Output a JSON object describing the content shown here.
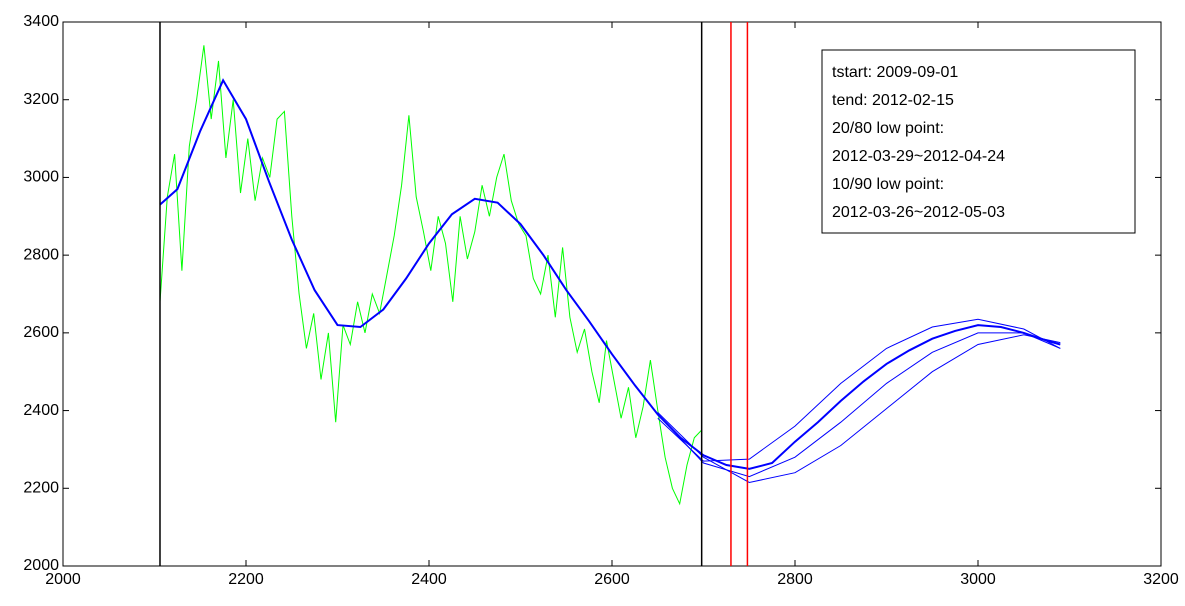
{
  "chart_data": {
    "type": "line",
    "xlim": [
      2000,
      3200
    ],
    "ylim": [
      2000,
      3400
    ],
    "xticks": [
      2000,
      2200,
      2400,
      2600,
      2800,
      3000,
      3200
    ],
    "yticks": [
      2000,
      2200,
      2400,
      2600,
      2800,
      3000,
      3200,
      3400
    ],
    "annotation": [
      "tstart: 2009-09-01",
      "tend: 2012-02-15",
      "20/80 low point:",
      "2012-03-29~2012-04-24",
      "10/90 low point:",
      "2012-03-26~2012-05-03"
    ],
    "vlines": [
      {
        "x": 2106,
        "color": "#000000"
      },
      {
        "x": 2698,
        "color": "#000000"
      },
      {
        "x": 2730,
        "color": "#ff0000"
      },
      {
        "x": 2748,
        "color": "#ff0000"
      }
    ],
    "series": [
      {
        "color": "#00ff00",
        "x": [
          2106,
          2114,
          2122,
          2130,
          2138,
          2146,
          2154,
          2162,
          2170,
          2178,
          2186,
          2194,
          2202,
          2210,
          2218,
          2226,
          2234,
          2242,
          2250,
          2258,
          2266,
          2274,
          2282,
          2290,
          2298,
          2306,
          2314,
          2322,
          2330,
          2338,
          2346,
          2354,
          2362,
          2370,
          2378,
          2386,
          2394,
          2402,
          2410,
          2418,
          2426,
          2434,
          2442,
          2450,
          2458,
          2466,
          2474,
          2482,
          2490,
          2498,
          2506,
          2514,
          2522,
          2530,
          2538,
          2546,
          2554,
          2562,
          2570,
          2578,
          2586,
          2594,
          2602,
          2610,
          2618,
          2626,
          2634,
          2642,
          2650,
          2658,
          2666,
          2674,
          2682,
          2690,
          2698
        ],
        "values": [
          2680,
          2950,
          3060,
          2760,
          3080,
          3200,
          3340,
          3150,
          3300,
          3050,
          3200,
          2960,
          3100,
          2940,
          3050,
          3000,
          3150,
          3170,
          2900,
          2700,
          2560,
          2650,
          2480,
          2600,
          2370,
          2620,
          2570,
          2680,
          2600,
          2700,
          2650,
          2750,
          2850,
          2980,
          3160,
          2950,
          2860,
          2760,
          2900,
          2830,
          2680,
          2900,
          2790,
          2860,
          2980,
          2900,
          3000,
          3060,
          2940,
          2880,
          2850,
          2740,
          2700,
          2800,
          2640,
          2820,
          2640,
          2550,
          2610,
          2500,
          2420,
          2580,
          2480,
          2380,
          2460,
          2330,
          2410,
          2530,
          2400,
          2280,
          2200,
          2160,
          2260,
          2330,
          2350
        ]
      },
      {
        "color": "#0000ff",
        "x": [
          2106,
          2125,
          2150,
          2175,
          2200,
          2225,
          2250,
          2275,
          2300,
          2325,
          2350,
          2375,
          2400,
          2425,
          2450,
          2475,
          2500,
          2525,
          2550,
          2575,
          2600,
          2625,
          2650,
          2675,
          2700,
          2725,
          2750,
          2775,
          2800,
          2825,
          2850,
          2875,
          2900,
          2925,
          2950,
          2975,
          3000,
          3025,
          3050,
          3075,
          3090
        ],
        "values": [
          2930,
          2970,
          3120,
          3250,
          3150,
          2990,
          2840,
          2710,
          2620,
          2615,
          2660,
          2740,
          2830,
          2905,
          2945,
          2935,
          2880,
          2800,
          2710,
          2630,
          2545,
          2465,
          2390,
          2330,
          2285,
          2260,
          2250,
          2265,
          2320,
          2370,
          2425,
          2475,
          2520,
          2555,
          2585,
          2605,
          2620,
          2615,
          2600,
          2580,
          2570
        ]
      },
      {
        "color": "#0000ff",
        "x": [
          2650,
          2700,
          2750,
          2800,
          2850,
          2900,
          2950,
          3000,
          3050,
          3090
        ],
        "values": [
          2380,
          2270,
          2275,
          2360,
          2470,
          2560,
          2615,
          2635,
          2610,
          2560
        ]
      },
      {
        "color": "#0000ff",
        "x": [
          2650,
          2700,
          2750,
          2800,
          2850,
          2900,
          2950,
          3000,
          3050,
          3090
        ],
        "values": [
          2395,
          2280,
          2215,
          2240,
          2310,
          2405,
          2500,
          2570,
          2595,
          2575
        ]
      },
      {
        "color": "#0000ff",
        "x": [
          2650,
          2700,
          2750,
          2800,
          2850,
          2900,
          2950,
          3000,
          3050,
          3090
        ],
        "values": [
          2390,
          2265,
          2230,
          2280,
          2370,
          2470,
          2550,
          2600,
          2600,
          2560
        ]
      }
    ]
  }
}
